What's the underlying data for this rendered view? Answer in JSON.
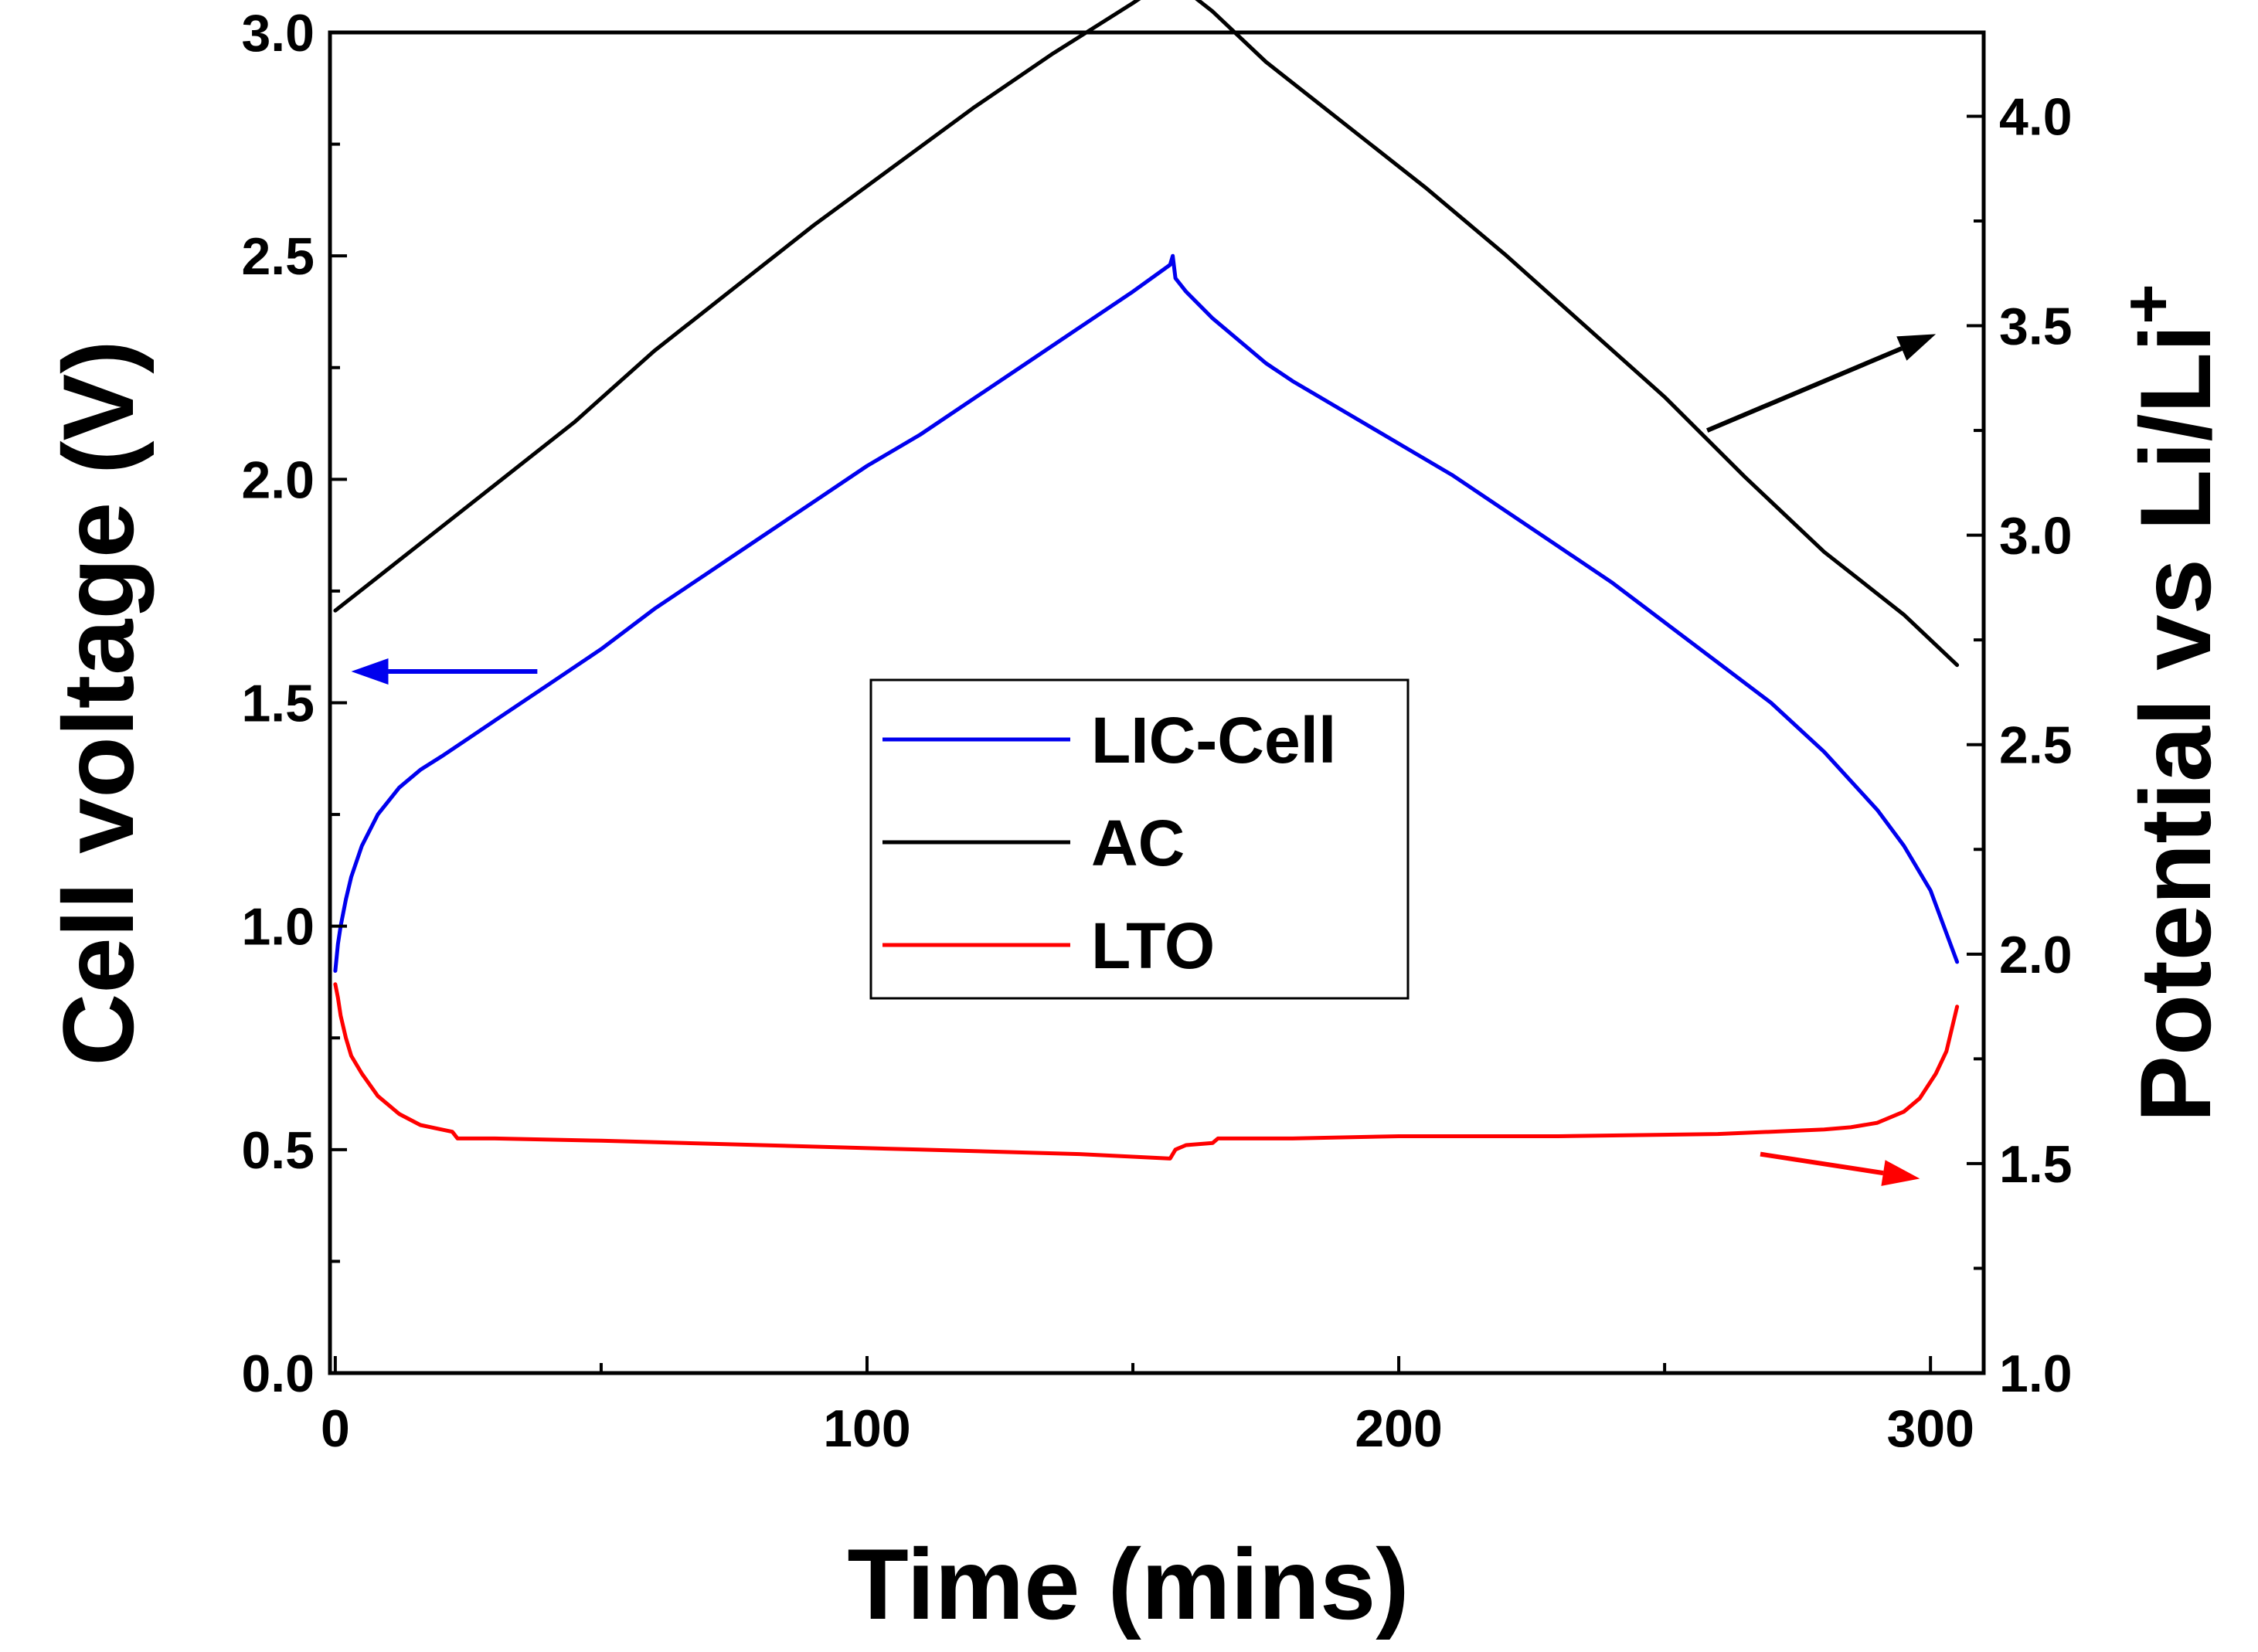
{
  "chart_data": {
    "type": "line",
    "xlabel": "Time (mins)",
    "ylabel_left": "Cell voltage (V)",
    "ylabel_right_base": "Potential vs Li/Li",
    "ylabel_right_sup": "+",
    "xlim": [
      -1,
      310
    ],
    "ylim_left": [
      0.0,
      3.0
    ],
    "ylim_right": [
      1.0,
      4.2
    ],
    "x_ticks": [
      0,
      100,
      200,
      300
    ],
    "x_tick_labels": [
      "0",
      "100",
      "200",
      "300"
    ],
    "y_left_ticks": [
      0.0,
      0.5,
      1.0,
      1.5,
      2.0,
      2.5,
      3.0
    ],
    "y_left_tick_labels": [
      "0.0",
      "0.5",
      "1.0",
      "1.5",
      "2.0",
      "2.5",
      "3.0"
    ],
    "y_right_ticks": [
      1.0,
      1.5,
      2.0,
      2.5,
      3.0,
      3.5,
      4.0
    ],
    "y_right_tick_labels": [
      "1.0",
      "1.5",
      "2.0",
      "2.5",
      "3.0",
      "3.5",
      "4.0"
    ],
    "legend_position": "center",
    "series": [
      {
        "name": "LIC-Cell",
        "axis": "left",
        "color": "#0000ee",
        "x": [
          0,
          0.5,
          1,
          2,
          3,
          5,
          8,
          12,
          16,
          20,
          25,
          30,
          40,
          50,
          60,
          70,
          80,
          90,
          100,
          110,
          120,
          130,
          140,
          150,
          157,
          157.5,
          158,
          160,
          165,
          170,
          175,
          180,
          190,
          200,
          210,
          220,
          230,
          240,
          250,
          260,
          270,
          280,
          290,
          295,
          300,
          305
        ],
        "y": [
          0.9,
          0.96,
          1.0,
          1.06,
          1.11,
          1.18,
          1.25,
          1.31,
          1.35,
          1.38,
          1.42,
          1.46,
          1.54,
          1.62,
          1.71,
          1.79,
          1.87,
          1.95,
          2.03,
          2.1,
          2.18,
          2.26,
          2.34,
          2.42,
          2.48,
          2.5,
          2.45,
          2.42,
          2.36,
          2.31,
          2.26,
          2.22,
          2.15,
          2.08,
          2.01,
          1.93,
          1.85,
          1.77,
          1.68,
          1.59,
          1.5,
          1.39,
          1.26,
          1.18,
          1.08,
          0.92
        ]
      },
      {
        "name": "AC",
        "axis": "right",
        "color": "#000000",
        "x": [
          0,
          10,
          20,
          30,
          45,
          60,
          75,
          90,
          105,
          120,
          135,
          150,
          157,
          158,
          159,
          165,
          175,
          190,
          205,
          220,
          235,
          250,
          265,
          280,
          295,
          305
        ],
        "y": [
          2.82,
          2.92,
          3.02,
          3.12,
          3.27,
          3.44,
          3.59,
          3.74,
          3.88,
          4.02,
          4.15,
          4.27,
          4.33,
          4.34,
          4.31,
          4.25,
          4.13,
          3.98,
          3.83,
          3.67,
          3.5,
          3.33,
          3.14,
          2.96,
          2.81,
          2.69
        ]
      },
      {
        "name": "LTO",
        "axis": "left",
        "color": "#ff0000",
        "x": [
          0,
          0.5,
          1,
          2,
          3,
          5,
          8,
          12,
          16,
          20,
          22,
          23,
          30,
          50,
          80,
          110,
          140,
          157,
          158,
          160,
          165,
          166,
          180,
          200,
          230,
          260,
          280,
          285,
          290,
          295,
          298,
          301,
          303,
          305
        ],
        "y": [
          0.87,
          0.84,
          0.8,
          0.75,
          0.71,
          0.67,
          0.62,
          0.58,
          0.555,
          0.545,
          0.54,
          0.525,
          0.525,
          0.52,
          0.51,
          0.5,
          0.49,
          0.48,
          0.5,
          0.51,
          0.515,
          0.525,
          0.525,
          0.53,
          0.53,
          0.535,
          0.545,
          0.55,
          0.56,
          0.585,
          0.615,
          0.67,
          0.72,
          0.82
        ]
      }
    ],
    "arrows": [
      {
        "for": "LIC-Cell",
        "color": "#0000ee",
        "from": [
          38,
          1.57
        ],
        "to": [
          3,
          1.57
        ]
      },
      {
        "for": "AC",
        "color": "#000000",
        "from": [
          258,
          3.25
        ],
        "to": [
          301,
          3.48
        ]
      },
      {
        "for": "LTO",
        "color": "#ff0000",
        "from": [
          268,
          0.49
        ],
        "to": [
          298,
          0.435
        ]
      }
    ]
  }
}
